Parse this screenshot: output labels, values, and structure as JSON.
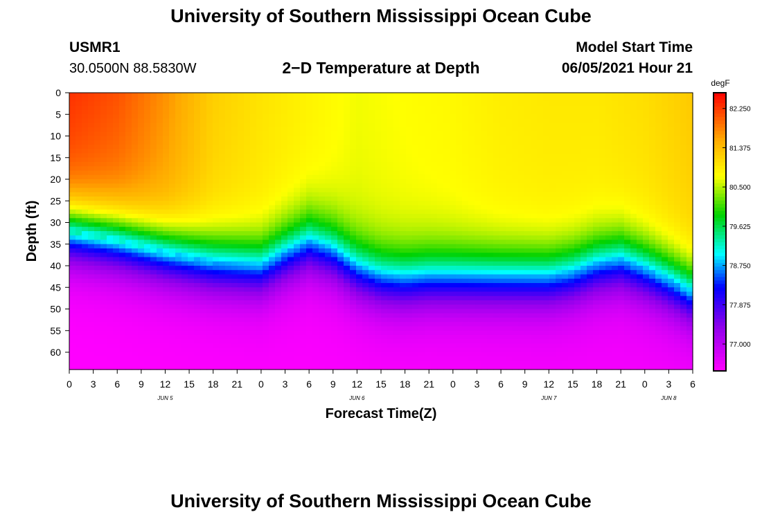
{
  "page": {
    "title_top": "University of Southern Mississippi Ocean Cube",
    "title_bottom": "University of Southern Mississippi Ocean Cube",
    "station_id": "USMR1",
    "station_coords": "30.0500N  88.5830W",
    "chart_title": "2−D Temperature at Depth",
    "model_label": "Model Start Time",
    "model_time": "06/05/2021 Hour 21"
  },
  "chart_data": {
    "type": "heatmap",
    "title": "2−D Temperature at Depth",
    "xlabel": "Forecast Time(Z)",
    "ylabel": "Depth (ft)",
    "colorbar_unit": "degF",
    "x_hours_range": [
      0,
      78
    ],
    "ylim": [
      0,
      64
    ],
    "y_ticks": [
      0,
      5,
      10,
      15,
      20,
      25,
      30,
      35,
      40,
      45,
      50,
      55,
      60
    ],
    "x_tick_labels": [
      "0",
      "3",
      "6",
      "9",
      "12",
      "15",
      "18",
      "21",
      "0",
      "3",
      "6",
      "9",
      "12",
      "15",
      "18",
      "21",
      "0",
      "3",
      "6",
      "9",
      "12",
      "15",
      "18",
      "21",
      "0",
      "3",
      "6"
    ],
    "x_tick_hours": [
      0,
      3,
      6,
      9,
      12,
      15,
      18,
      21,
      24,
      27,
      30,
      33,
      36,
      39,
      42,
      45,
      48,
      51,
      54,
      57,
      60,
      63,
      66,
      69,
      72,
      75,
      78
    ],
    "date_labels": [
      {
        "text": "JUN 5",
        "hour": 12
      },
      {
        "text": "JUN 6",
        "hour": 36
      },
      {
        "text": "JUN 7",
        "hour": 60
      },
      {
        "text": "JUN 8",
        "hour": 75
      }
    ],
    "colorbar": {
      "vmin": 76.4,
      "vmax": 82.6,
      "ticks": [
        82.25,
        81.375,
        80.5,
        79.625,
        78.75,
        77.875,
        77.0
      ],
      "tick_labels": [
        "82.250",
        "81.375",
        "80.500",
        "79.625",
        "78.750",
        "77.875",
        "77.000"
      ]
    },
    "thermocline": {
      "hours": [
        0,
        6,
        12,
        18,
        24,
        27,
        30,
        33,
        36,
        39,
        42,
        45,
        48,
        51,
        54,
        57,
        60,
        63,
        66,
        69,
        72,
        75,
        78
      ],
      "depth_ft": [
        32,
        34,
        37,
        39.5,
        40.5,
        37.5,
        35,
        37,
        41,
        43,
        43.5,
        43,
        43,
        43,
        43,
        43,
        43,
        42,
        40,
        39,
        41,
        43.5,
        46.5
      ]
    },
    "surface_temp": {
      "hours": [
        0,
        6,
        12,
        18,
        24,
        30,
        36,
        42,
        48,
        54,
        60,
        66,
        72,
        78
      ],
      "degF": [
        82.3,
        82.1,
        81.7,
        81.2,
        81.0,
        80.85,
        80.7,
        80.75,
        80.8,
        80.9,
        80.95,
        80.95,
        81.05,
        81.25
      ]
    },
    "bottom_temp": {
      "hours": [
        0,
        78
      ],
      "degF": [
        76.4,
        76.5
      ]
    }
  }
}
